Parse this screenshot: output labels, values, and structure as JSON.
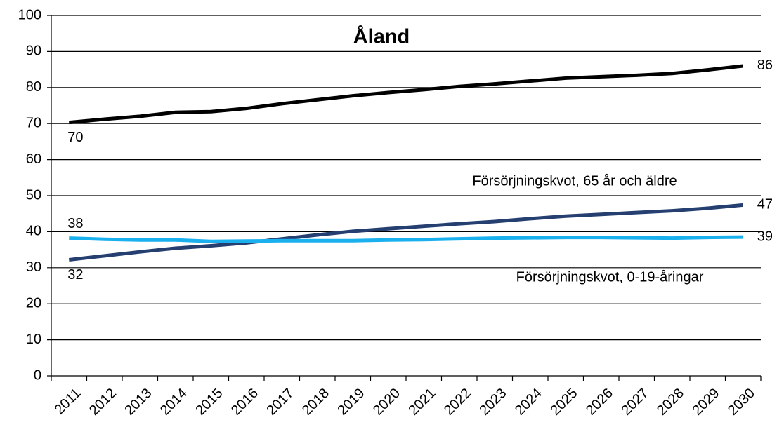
{
  "chart_data": {
    "type": "line",
    "title": "Åland",
    "categories": [
      "2011",
      "2012",
      "2013",
      "2014",
      "2015",
      "2016",
      "2017",
      "2018",
      "2019",
      "2020",
      "2021",
      "2022",
      "2023",
      "2024",
      "2025",
      "2026",
      "2027",
      "2028",
      "2029",
      "2030"
    ],
    "series": [
      {
        "color": "#000000",
        "values": [
          70.3,
          71.2,
          72.0,
          73.1,
          73.3,
          74.2,
          75.5,
          76.6,
          77.7,
          78.6,
          79.4,
          80.3,
          81.0,
          81.8,
          82.6,
          83.0,
          83.4,
          83.9,
          84.9,
          86.0
        ],
        "value_labels": [
          "70",
          null,
          null,
          null,
          null,
          null,
          null,
          null,
          null,
          null,
          null,
          null,
          null,
          null,
          null,
          null,
          null,
          null,
          null,
          "86"
        ]
      },
      {
        "name": "Försörjningskvot, 65 år och äldre",
        "color": "#243f70",
        "values": [
          32.2,
          33.3,
          34.4,
          35.4,
          36.1,
          36.9,
          38.0,
          39.1,
          40.1,
          40.8,
          41.5,
          42.2,
          42.8,
          43.6,
          44.3,
          44.8,
          45.3,
          45.8,
          46.5,
          47.4
        ],
        "value_labels": [
          "32",
          null,
          null,
          null,
          null,
          null,
          null,
          null,
          null,
          null,
          null,
          null,
          null,
          null,
          null,
          null,
          null,
          null,
          null,
          "47"
        ]
      },
      {
        "name": "Försörjningskvot, 0-19-åringar",
        "color": "#1ab0ee",
        "values": [
          38.2,
          37.9,
          37.7,
          37.7,
          37.3,
          37.4,
          37.5,
          37.5,
          37.5,
          37.7,
          37.8,
          38.0,
          38.2,
          38.3,
          38.4,
          38.4,
          38.3,
          38.2,
          38.4,
          38.5
        ],
        "value_labels": [
          "38",
          null,
          null,
          null,
          null,
          null,
          null,
          null,
          null,
          null,
          null,
          null,
          null,
          null,
          null,
          null,
          null,
          null,
          null,
          "39"
        ]
      }
    ],
    "ylim": [
      0,
      100
    ],
    "yticks": [
      0,
      10,
      20,
      30,
      40,
      50,
      60,
      70,
      80,
      90,
      100
    ],
    "grid": true
  }
}
